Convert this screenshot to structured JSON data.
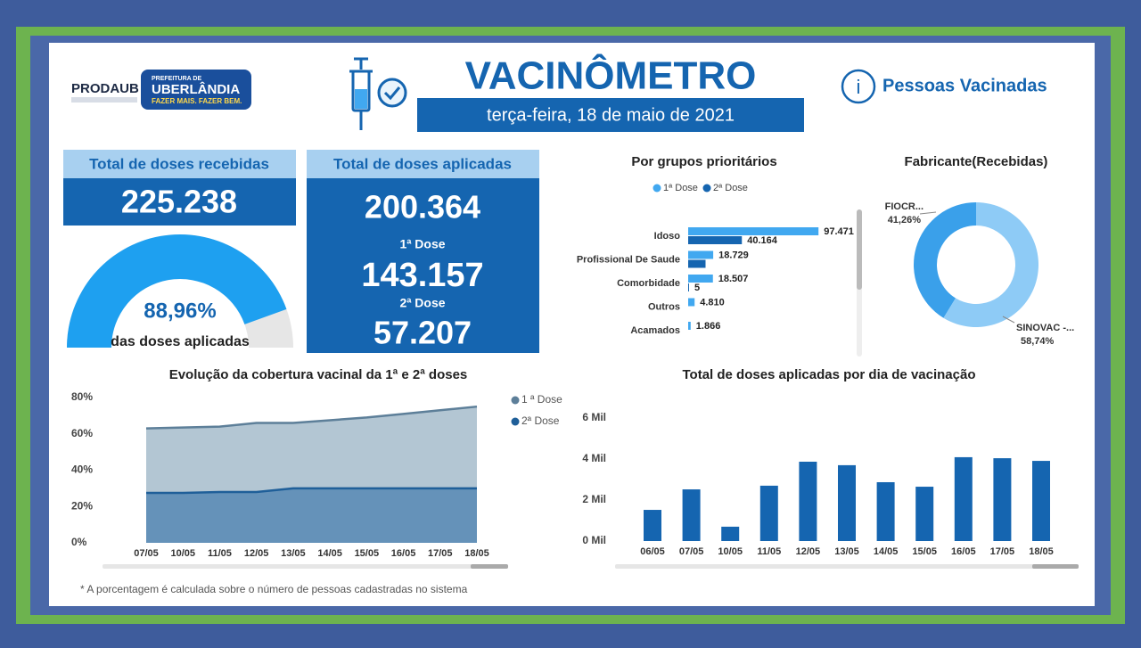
{
  "header": {
    "org": "PRODAUB",
    "logo_lines": [
      "PREFEITURA DE",
      "UBERLÂNDIA",
      "FAZER MAIS. FAZER BEM."
    ],
    "title": "VACINÔMETRO",
    "date": "terça-feira, 18 de maio de 2021",
    "link": "Pessoas Vacinadas"
  },
  "kpis": {
    "received": {
      "label": "Total de doses recebidas",
      "value": "225.238"
    },
    "applied": {
      "label": "Total de doses aplicadas",
      "value": "200.364",
      "dose1_label": "1ª Dose",
      "dose1": "143.157",
      "dose2_label": "2ª Dose",
      "dose2": "57.207"
    }
  },
  "chart_data": [
    {
      "type": "gauge",
      "values": [
        88.96
      ],
      "value_labels": [
        "88,96%"
      ],
      "caption": "das doses aplicadas",
      "ylim": [
        0,
        100
      ],
      "color": "#1ea0f0",
      "track_color": "#e6e6e6"
    },
    {
      "type": "hbar",
      "title": "Por grupos prioritários",
      "legend": "top",
      "categories": [
        "Idoso",
        "Profissional De Saude",
        "Comorbidade",
        "Outros",
        "Acamados"
      ],
      "series": [
        {
          "name": "1ª Dose",
          "color": "#41a8f0",
          "values": [
            97471,
            18729,
            18507,
            4810,
            1866
          ],
          "value_labels": [
            "97.471",
            "18.729",
            "18.507",
            "4.810",
            "1.866"
          ]
        },
        {
          "name": "2ª Dose",
          "color": "#1565b0",
          "values": [
            40164,
            13000,
            5,
            null,
            null
          ],
          "value_labels": [
            "40.164",
            null,
            "5",
            null,
            null
          ]
        }
      ],
      "xlim": [
        0,
        100000
      ]
    },
    {
      "type": "donut",
      "title": "Fabricante(Recebidas)",
      "categories": [
        "FIOCR...",
        "SINOVAC -..."
      ],
      "values": [
        41.26,
        58.74
      ],
      "value_labels": [
        "41,26%",
        "58,74%"
      ],
      "colors": [
        "#3aa0ea",
        "#8ecbf6"
      ]
    },
    {
      "type": "area",
      "title": "Evolução da cobertura vacinal da 1ª e 2ª doses",
      "legend": "right",
      "categories": [
        "07/05",
        "10/05",
        "11/05",
        "12/05",
        "13/05",
        "14/05",
        "15/05",
        "16/05",
        "17/05",
        "18/05"
      ],
      "series": [
        {
          "name": "1 ª Dose",
          "color": "#5d7f99",
          "fill": "#b3c6d3",
          "values": [
            63,
            63.5,
            64,
            66,
            66,
            67.5,
            69,
            71,
            73,
            75
          ]
        },
        {
          "name": "2ª Dose",
          "color": "#1f5f99",
          "fill": "#6592b9",
          "values": [
            27.5,
            27.5,
            28,
            28,
            30,
            30,
            30,
            30,
            30,
            30
          ]
        }
      ],
      "ylim": [
        0,
        80
      ],
      "yticks": [
        {
          "value": 0,
          "label": "0%"
        },
        {
          "value": 20,
          "label": "20%"
        },
        {
          "value": 40,
          "label": "40%"
        },
        {
          "value": 60,
          "label": "60%"
        },
        {
          "value": 80,
          "label": "80%"
        }
      ]
    },
    {
      "type": "bar",
      "title": "Total de doses aplicadas por dia de vacinação",
      "color": "#1565b0",
      "categories": [
        "06/05",
        "07/05",
        "10/05",
        "11/05",
        "12/05",
        "13/05",
        "14/05",
        "15/05",
        "16/05",
        "17/05",
        "18/05"
      ],
      "values": [
        1.52,
        2.52,
        0.7,
        2.7,
        3.87,
        3.7,
        2.87,
        2.65,
        4.09,
        4.04,
        3.91
      ],
      "ylim": [
        0,
        6.5
      ],
      "yticks": [
        {
          "value": 0,
          "label": "0 Mil"
        },
        {
          "value": 2,
          "label": "2 Mil"
        },
        {
          "value": 4,
          "label": "4 Mil"
        },
        {
          "value": 6,
          "label": "6 Mil"
        }
      ]
    }
  ],
  "footnote": "* A porcentagem é calculada sobre o número de pessoas cadastradas no sistema"
}
